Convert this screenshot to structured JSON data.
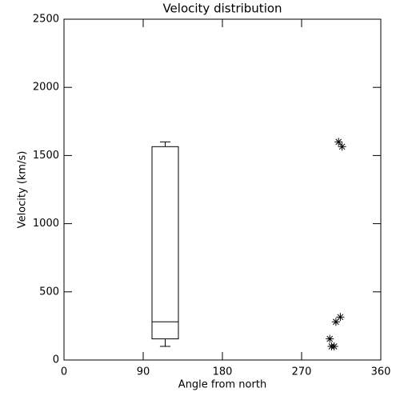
{
  "chart_data": {
    "type": "box",
    "title": "Velocity distribution",
    "x_label": "Angle from north",
    "y_label": "Velocity (km/s)",
    "xlim": [
      0,
      360
    ],
    "xticks": [
      0,
      90,
      180,
      270,
      360
    ],
    "ylim": [
      0,
      2500
    ],
    "yticks": [
      0,
      500,
      1000,
      1500,
      2000,
      2500
    ],
    "color": "#000000",
    "box": {
      "x": 115,
      "width": 30,
      "whisker_low": 100,
      "q1": 155,
      "median": 280,
      "q3": 1565,
      "whisker_high": 1600
    },
    "points": {
      "marker": "asterisk",
      "x": [
        312,
        316,
        309,
        314,
        302,
        304,
        307
      ],
      "y": [
        1600,
        1565,
        280,
        315,
        155,
        100,
        100
      ]
    }
  }
}
